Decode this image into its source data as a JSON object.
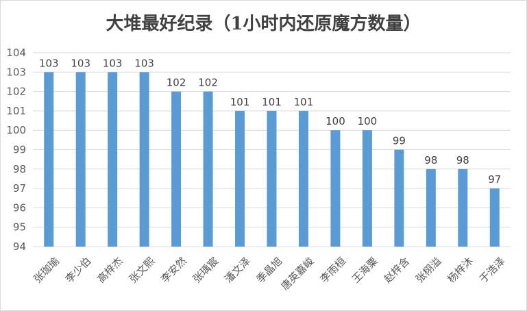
{
  "chart_data": {
    "type": "bar",
    "title": "大堆最好纪录（1小时内还原魔方数量）",
    "categories": [
      "张珈瑜",
      "李少伯",
      "高梓杰",
      "张文熙",
      "李安然",
      "张瑀宸",
      "潘文泽",
      "季晶旭",
      "唐英嘉峻",
      "李雨桓",
      "王海粟",
      "赵梓含",
      "张栩溢",
      "杨梓沐",
      "于浩泽"
    ],
    "values": [
      103,
      103,
      103,
      103,
      102,
      102,
      101,
      101,
      101,
      100,
      100,
      99,
      98,
      98,
      97
    ],
    "ylim": [
      94,
      104
    ],
    "yticks": [
      104,
      103,
      102,
      101,
      100,
      99,
      98,
      97,
      96,
      95,
      94
    ],
    "ytick_labels": [
      "104",
      "103",
      "102",
      "101",
      "100",
      "99",
      "98",
      "97",
      "96",
      "95",
      "94"
    ],
    "grid": true,
    "data_labels": true,
    "bar_color": "#5b9bd5",
    "grid_color": "#d9d9d9"
  }
}
